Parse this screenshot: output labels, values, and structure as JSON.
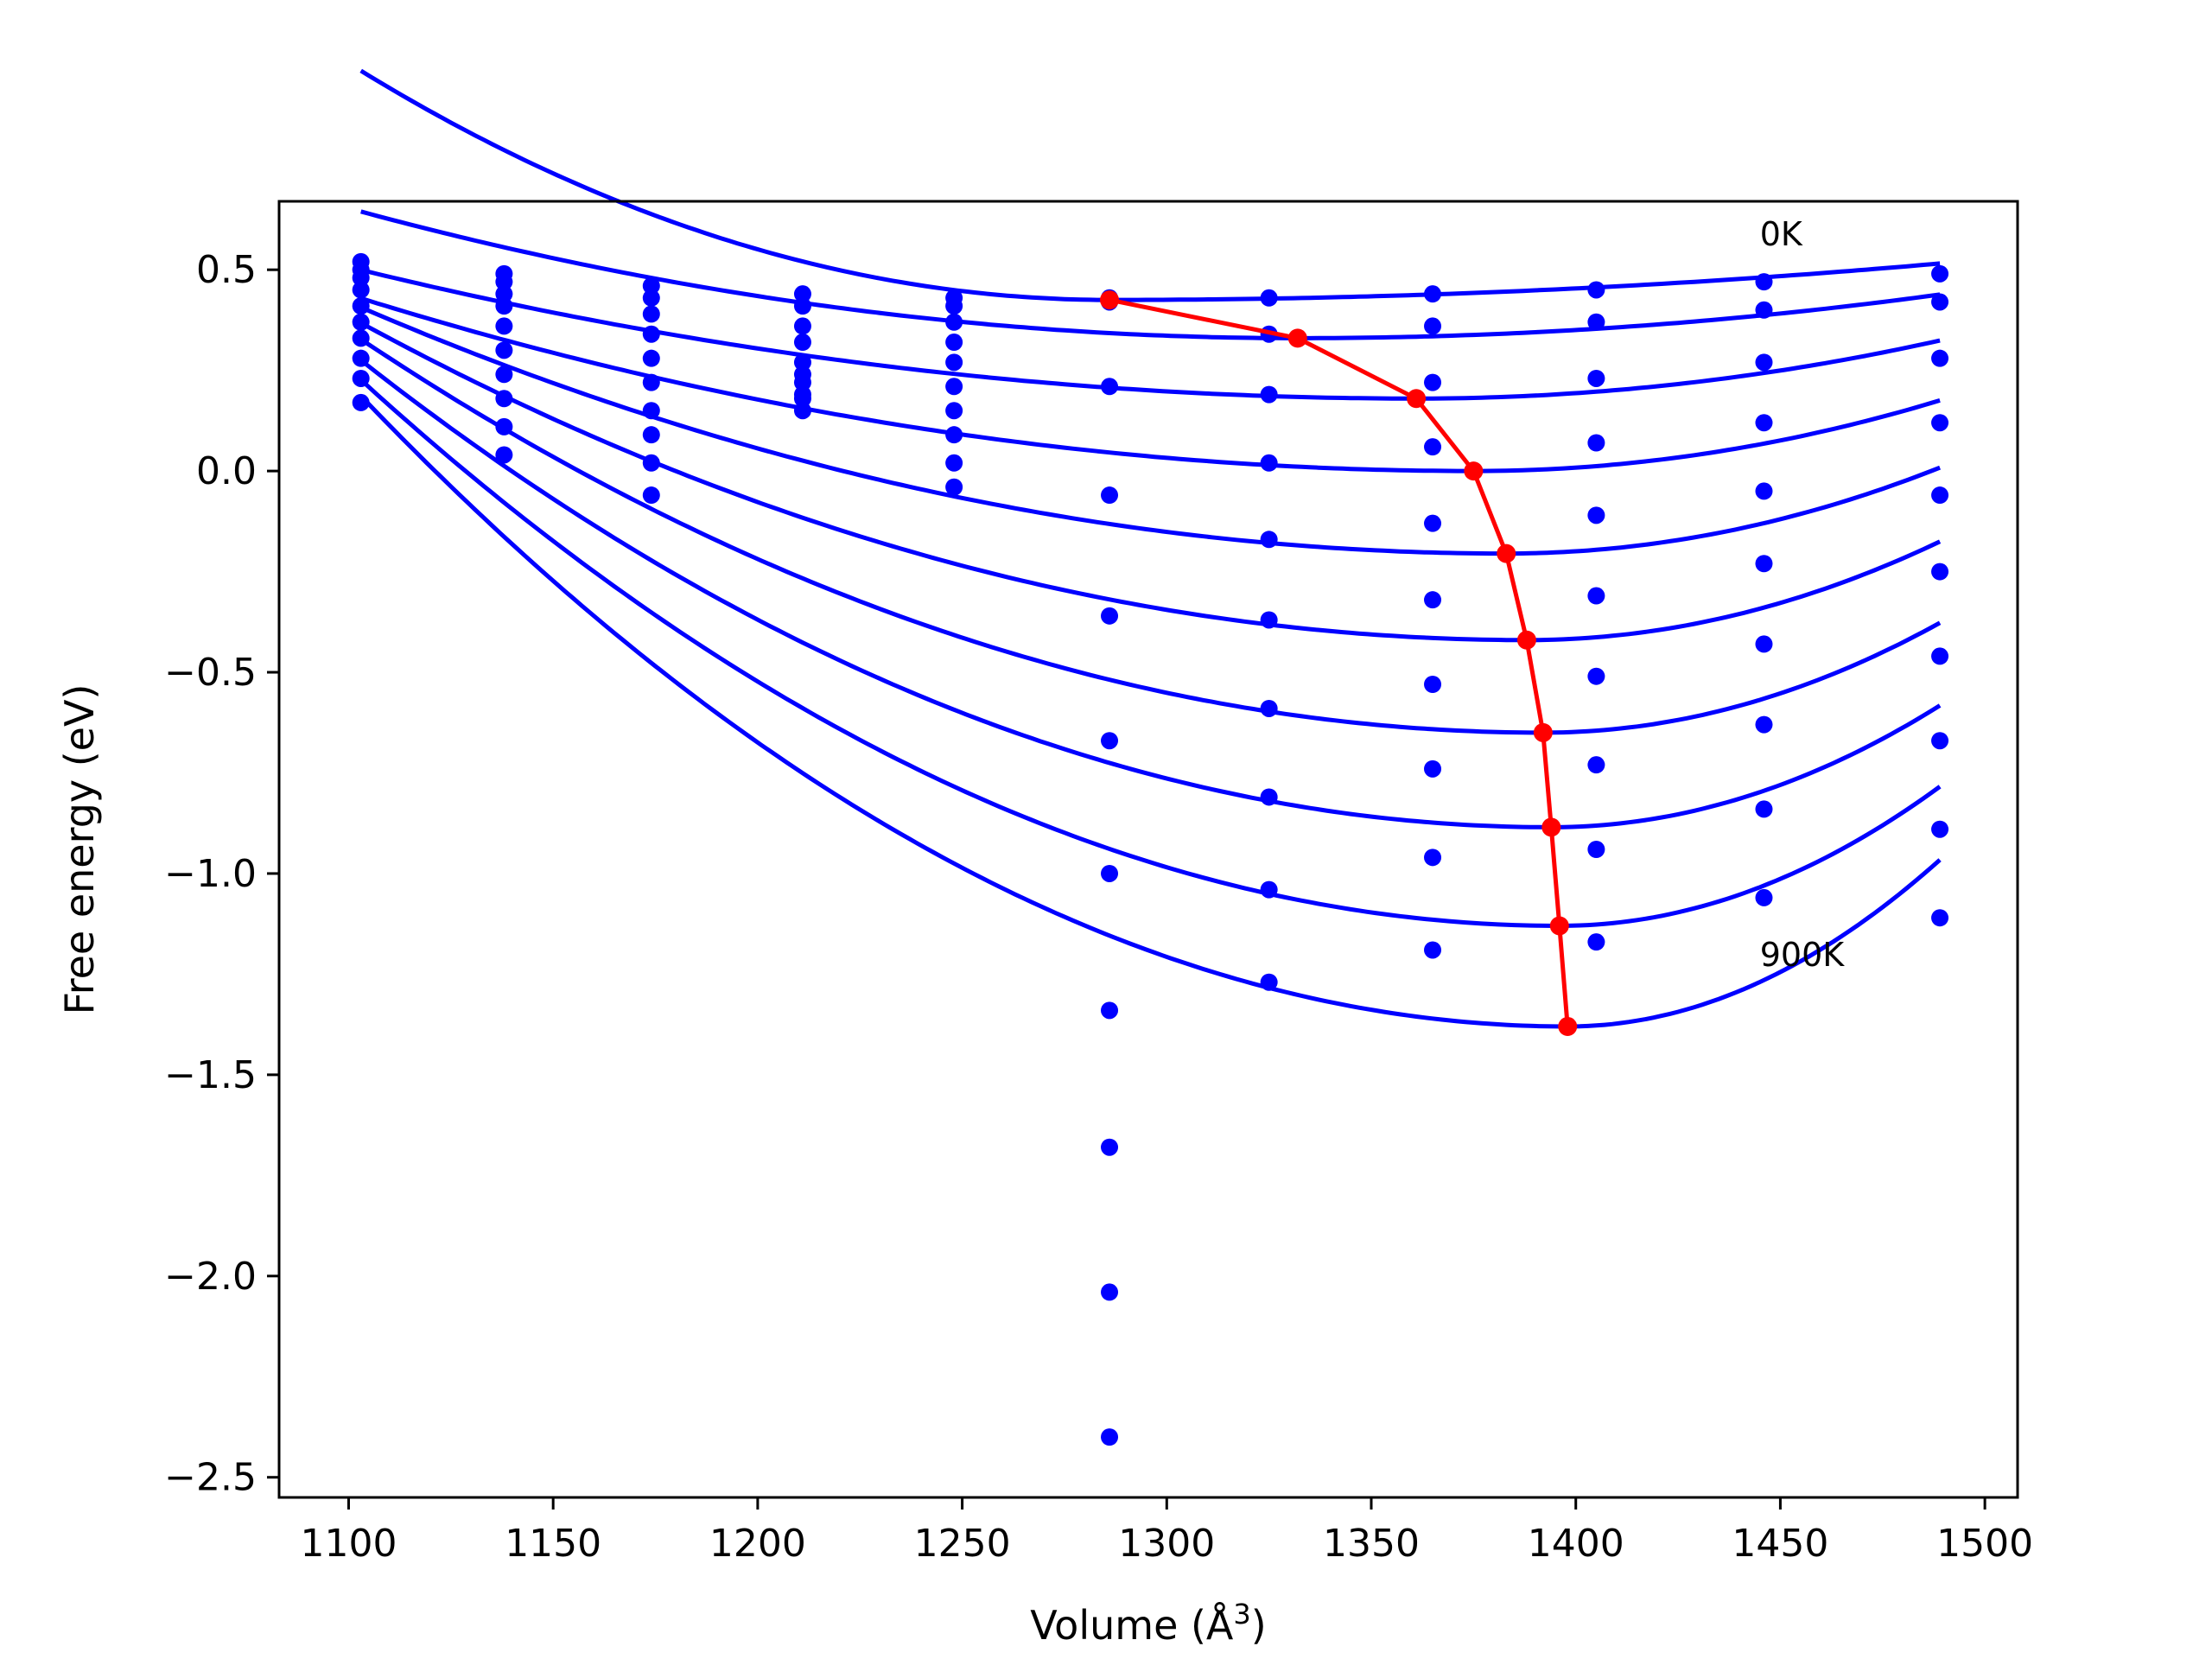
{
  "chart_data": {
    "type": "line",
    "xlabel": "Volume (Å",
    "xlabel_sup": "3",
    "xlabel_close": ")",
    "ylabel": "Free energy (eV)",
    "xlim": [
      1083,
      1508
    ],
    "ylim": [
      -2.55,
      0.67
    ],
    "xticks": [
      1100,
      1150,
      1200,
      1250,
      1300,
      1350,
      1400,
      1450,
      1500
    ],
    "yticks": [
      0.5,
      0.0,
      -0.5,
      -1.0,
      -1.5,
      -2.0,
      -2.5
    ],
    "ytick_labels": [
      "0.5",
      "0.0",
      "−0.5",
      "−1.0",
      "−1.5",
      "−2.0",
      "−2.5"
    ],
    "grid": false,
    "colors": {
      "fit": "#0000ff",
      "points": "#0000ff",
      "minimum": "#ff0000",
      "axes": "#000000"
    },
    "annotations": [
      {
        "text": "0K",
        "x": 1445,
        "y": 0.56
      },
      {
        "text": "900K",
        "x": 1445,
        "y": -1.23
      }
    ],
    "scatter_x": [
      1103,
      1138,
      1174,
      1211,
      1248,
      1286,
      1325,
      1365,
      1405,
      1446,
      1489
    ],
    "scatter_y": [
      [
        0.52,
        0.49,
        0.46,
        0.44,
        0.43,
        0.43,
        0.43,
        0.44,
        0.45,
        0.47,
        0.49
      ],
      [
        0.5,
        0.47,
        0.43,
        0.41,
        0.41,
        0.42,
        0.34,
        0.36,
        0.37,
        0.4,
        0.42
      ],
      [
        0.48,
        0.44,
        0.39,
        0.36,
        0.37,
        0.21,
        0.19,
        0.22,
        0.23,
        0.27,
        0.28
      ],
      [
        0.45,
        0.41,
        0.34,
        0.32,
        0.32,
        -0.06,
        0.02,
        0.06,
        0.07,
        0.12,
        0.12
      ],
      [
        0.41,
        0.36,
        0.28,
        0.27,
        0.27,
        -0.36,
        -0.17,
        -0.13,
        -0.11,
        -0.05,
        -0.06
      ],
      [
        0.37,
        0.3,
        0.22,
        0.24,
        0.21,
        -0.67,
        -0.37,
        -0.32,
        -0.31,
        -0.23,
        -0.25
      ],
      [
        0.33,
        0.24,
        0.15,
        0.19,
        0.15,
        -1.0,
        -0.59,
        -0.53,
        -0.51,
        -0.43,
        -0.46
      ],
      [
        0.28,
        0.18,
        0.09,
        0.15,
        0.09,
        -1.34,
        -0.81,
        -0.74,
        -0.73,
        -0.63,
        -0.67
      ],
      [
        0.23,
        0.11,
        0.02,
        0.18,
        0.02,
        -1.68,
        -1.04,
        -0.96,
        -0.94,
        -0.84,
        -0.89
      ],
      [
        0.17,
        0.04,
        -0.06,
        0.22,
        -0.04,
        -2.04,
        -1.27,
        -1.19,
        -1.17,
        -1.06,
        -1.11
      ]
    ],
    "extra_points": [
      {
        "x": 1286,
        "y": -2.4
      }
    ],
    "fit_curves": [
      {
        "vmin": 1286,
        "fmin": 0.425,
        "a_left": 1.7e-05,
        "a_right": 2.2e-06
      },
      {
        "vmin": 1332,
        "fmin": 0.33,
        "a_left": 6e-06,
        "a_right": 4.4e-06
      },
      {
        "vmin": 1361,
        "fmin": 0.18,
        "a_left": 4.8e-06,
        "a_right": 8.8e-06
      },
      {
        "vmin": 1375,
        "fmin": 0.0,
        "a_left": 5.8e-06,
        "a_right": 1.35e-05
      },
      {
        "vmin": 1383,
        "fmin": -0.205,
        "a_left": 7.8e-06,
        "a_right": 1.9e-05
      },
      {
        "vmin": 1388,
        "fmin": -0.42,
        "a_left": 9.7e-06,
        "a_right": 2.4e-05
      },
      {
        "vmin": 1392,
        "fmin": -0.65,
        "a_left": 1.17e-05,
        "a_right": 2.9e-05
      },
      {
        "vmin": 1394,
        "fmin": -0.885,
        "a_left": 1.37e-05,
        "a_right": 3.35e-05
      },
      {
        "vmin": 1396,
        "fmin": -1.13,
        "a_left": 1.58e-05,
        "a_right": 4e-05
      },
      {
        "vmin": 1398,
        "fmin": -1.38,
        "a_left": 1.8e-05,
        "a_right": 5e-05
      }
    ],
    "curve_x_range": [
      1103,
      1489
    ],
    "minimum_path": {
      "x": [
        1286,
        1332,
        1361,
        1375,
        1383,
        1388,
        1392,
        1394,
        1396,
        1398
      ],
      "y": [
        0.425,
        0.33,
        0.18,
        0.0,
        -0.205,
        -0.42,
        -0.65,
        -0.885,
        -1.13,
        -1.38
      ]
    }
  }
}
